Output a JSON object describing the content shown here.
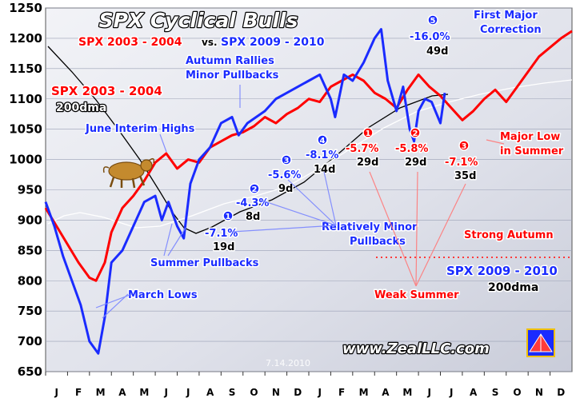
{
  "chart_data": {
    "type": "line",
    "title": "SPX Cyclical Bulls",
    "subtitle_left": "SPX 2003 - 2004",
    "subtitle_vs": "vs.",
    "subtitle_right": "SPX 2009 - 2010",
    "ylim": [
      650,
      1250
    ],
    "y_ticks": [
      650,
      700,
      750,
      800,
      850,
      900,
      950,
      1000,
      1050,
      1100,
      1150,
      1200,
      1250
    ],
    "x_ticks": [
      "J",
      "F",
      "M",
      "A",
      "M",
      "J",
      "J",
      "A",
      "S",
      "O",
      "N",
      "D",
      "J",
      "F",
      "M",
      "A",
      "M",
      "J",
      "J",
      "A",
      "S",
      "O",
      "N",
      "D"
    ],
    "date_label": "7.14.2010",
    "watermark": "www.ZealLLC.com",
    "series": [
      {
        "name": "SPX 2003 - 2004",
        "color": "#ff0000",
        "x": [
          0,
          0.5,
          1,
          1.5,
          2,
          2.3,
          2.7,
          3,
          3.5,
          4,
          4.5,
          5,
          5.5,
          6,
          6.5,
          7,
          7.5,
          8,
          8.5,
          9,
          9.5,
          10,
          10.5,
          11,
          11.5,
          12,
          12.5,
          13,
          13.5,
          14,
          14.5,
          15,
          15.5,
          16,
          16.5,
          17,
          17.5,
          18,
          18.5,
          19,
          19.5,
          20,
          20.5,
          21,
          21.5,
          22,
          22.5,
          23,
          23.5,
          24
        ],
        "y": [
          920,
          890,
          860,
          830,
          805,
          800,
          830,
          880,
          920,
          940,
          965,
          995,
          1010,
          985,
          1000,
          995,
          1020,
          1030,
          1040,
          1045,
          1055,
          1070,
          1060,
          1075,
          1085,
          1100,
          1095,
          1120,
          1130,
          1140,
          1130,
          1110,
          1100,
          1085,
          1115,
          1140,
          1120,
          1105,
          1085,
          1065,
          1080,
          1100,
          1115,
          1095,
          1120,
          1145,
          1170,
          1185,
          1200,
          1212
        ]
      },
      {
        "name": "SPX 2009 - 2010",
        "color": "#1a2bff",
        "x": [
          0,
          0.4,
          0.8,
          1.2,
          1.6,
          2,
          2.4,
          2.7,
          3,
          3.5,
          4,
          4.5,
          5,
          5.3,
          5.6,
          6,
          6.3,
          6.6,
          7,
          7.5,
          8,
          8.5,
          8.8,
          9.2,
          9.6,
          10,
          10.5,
          11,
          11.5,
          12,
          12.5,
          13,
          13.2,
          13.6,
          14,
          14.5,
          15,
          15.3,
          15.6,
          16,
          16.3,
          16.6,
          16.8,
          17,
          17.3,
          17.6,
          18,
          18.2
        ],
        "y": [
          930,
          890,
          840,
          800,
          760,
          700,
          680,
          740,
          830,
          850,
          890,
          930,
          940,
          900,
          930,
          890,
          870,
          960,
          1000,
          1020,
          1060,
          1070,
          1040,
          1060,
          1070,
          1080,
          1100,
          1110,
          1120,
          1130,
          1140,
          1100,
          1070,
          1140,
          1130,
          1160,
          1200,
          1215,
          1130,
          1080,
          1120,
          1050,
          1030,
          1080,
          1100,
          1095,
          1060,
          1110
        ]
      }
    ],
    "dma_2003_label": "200dma",
    "dma_2009_label": "200dma",
    "pullbacks_2009": [
      {
        "num": "1",
        "pct": "-7.1%",
        "days": "19d"
      },
      {
        "num": "2",
        "pct": "-4.3%",
        "days": "8d"
      },
      {
        "num": "3",
        "pct": "-5.6%",
        "days": "9d"
      },
      {
        "num": "4",
        "pct": "-8.1%",
        "days": "14d"
      },
      {
        "num": "5",
        "pct": "-16.0%",
        "days": "49d"
      }
    ],
    "pullbacks_2003": [
      {
        "num": "1",
        "pct": "-5.7%",
        "days": "29d"
      },
      {
        "num": "2",
        "pct": "-5.8%",
        "days": "29d"
      },
      {
        "num": "3",
        "pct": "-7.1%",
        "days": "35d"
      }
    ],
    "annotations": {
      "june_interim_highs": "June Interim Highs",
      "autumn_rallies_1": "Autumn Rallies",
      "autumn_rallies_2": "Minor Pullbacks",
      "summer_pullbacks": "Summer Pullbacks",
      "march_lows": "March Lows",
      "relatively_minor_1": "Relatively Minor",
      "relatively_minor_2": "Pullbacks",
      "first_major_1": "First Major",
      "first_major_2": "Correction",
      "major_low_1": "Major Low",
      "major_low_2": "in Summer",
      "strong_autumn": "Strong Autumn",
      "weak_summer": "Weak Summer"
    }
  }
}
